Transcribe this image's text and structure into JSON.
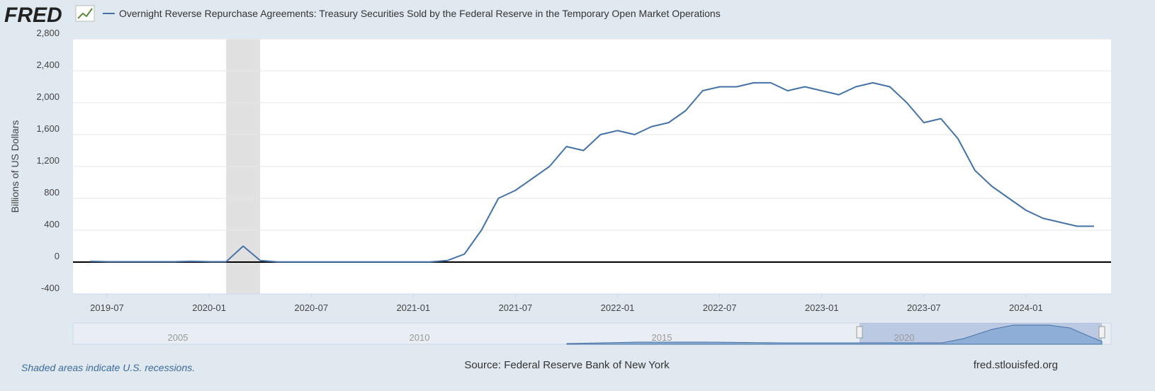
{
  "logo": "FRED",
  "chart_data": {
    "type": "line",
    "title": "Overnight Reverse Repurchase Agreements: Treasury Securities Sold by the Federal Reserve in the Temporary Open Market Operations",
    "y_label": "Billions of US Dollars",
    "x": [
      "2019-06",
      "2019-07",
      "2019-08",
      "2019-09",
      "2019-10",
      "2019-11",
      "2019-12",
      "2020-01",
      "2020-02",
      "2020-03",
      "2020-04",
      "2020-05",
      "2020-06",
      "2020-07",
      "2020-08",
      "2020-09",
      "2020-10",
      "2020-11",
      "2020-12",
      "2021-01",
      "2021-02",
      "2021-03",
      "2021-04",
      "2021-05",
      "2021-06",
      "2021-07",
      "2021-08",
      "2021-09",
      "2021-10",
      "2021-11",
      "2021-12",
      "2022-01",
      "2022-02",
      "2022-03",
      "2022-04",
      "2022-05",
      "2022-06",
      "2022-07",
      "2022-08",
      "2022-09",
      "2022-10",
      "2022-11",
      "2022-12",
      "2023-01",
      "2023-02",
      "2023-03",
      "2023-04",
      "2023-05",
      "2023-06",
      "2023-07",
      "2023-08",
      "2023-09",
      "2023-10",
      "2023-11",
      "2023-12",
      "2024-01",
      "2024-02",
      "2024-03",
      "2024-04",
      "2024-05"
    ],
    "series": [
      {
        "name": "Overnight Reverse Repurchase Agreements: Treasury Securities Sold by the Federal Reserve in the Temporary Open Market Operations",
        "color": "#4572a7",
        "values": [
          10,
          5,
          5,
          5,
          5,
          5,
          10,
          5,
          5,
          200,
          20,
          2,
          2,
          2,
          2,
          2,
          2,
          2,
          2,
          2,
          2,
          20,
          100,
          400,
          800,
          900,
          1050,
          1200,
          1450,
          1400,
          1600,
          1650,
          1600,
          1700,
          1750,
          1900,
          2150,
          2200,
          2200,
          2250,
          2250,
          2150,
          2200,
          2150,
          2100,
          2200,
          2250,
          2200,
          2000,
          1750,
          1800,
          1550,
          1150,
          950,
          800,
          650,
          550,
          500,
          450,
          450
        ]
      }
    ],
    "xlim": [
      "2019-05",
      "2024-06"
    ],
    "xticks": [
      "2019-07",
      "2020-01",
      "2020-07",
      "2021-01",
      "2021-07",
      "2022-01",
      "2022-07",
      "2023-01",
      "2023-07",
      "2024-01"
    ],
    "ylim": [
      -400,
      2800
    ],
    "yticks": [
      -400,
      0,
      {
        "value": 400,
        "label": "400"
      },
      {
        "value": 800,
        "label": "800"
      },
      {
        "value": 1200,
        "label": "1,200"
      },
      {
        "value": 1600,
        "label": "1,600"
      },
      {
        "value": 2000,
        "label": "2,000"
      },
      {
        "value": 2400,
        "label": "2,400"
      },
      {
        "value": 2800,
        "label": "2,800"
      }
    ],
    "grid": true,
    "recessions": [
      [
        "2020-02",
        "2020-04"
      ]
    ]
  },
  "navigator": {
    "labels": [
      "2005",
      "2010",
      "2015",
      "2020"
    ]
  },
  "footer": {
    "note": "Shaded areas indicate U.S. recessions.",
    "source": "Source: Federal Reserve Bank of New York",
    "site": "fred.stlouisfed.org"
  }
}
